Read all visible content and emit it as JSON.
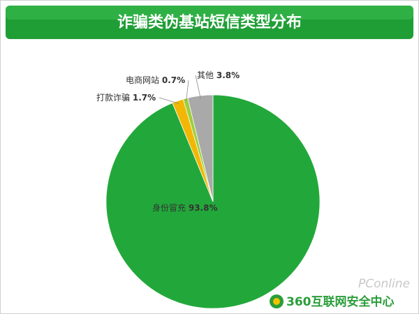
{
  "chart_data": {
    "type": "pie",
    "title": "诈骗类伪基站短信类型分布",
    "categories": [
      "身份冒充",
      "打款诈骗",
      "电商网站",
      "其他"
    ],
    "values": [
      93.8,
      1.7,
      0.7,
      3.8
    ],
    "value_labels": [
      "93.8%",
      "1.7%",
      "0.7%",
      "3.8%"
    ],
    "colors": [
      "#22a83a",
      "#f2b705",
      "#9ccf3c",
      "#a9a9a9"
    ],
    "footer": "360互联网安全中心",
    "watermark": "PConline"
  }
}
